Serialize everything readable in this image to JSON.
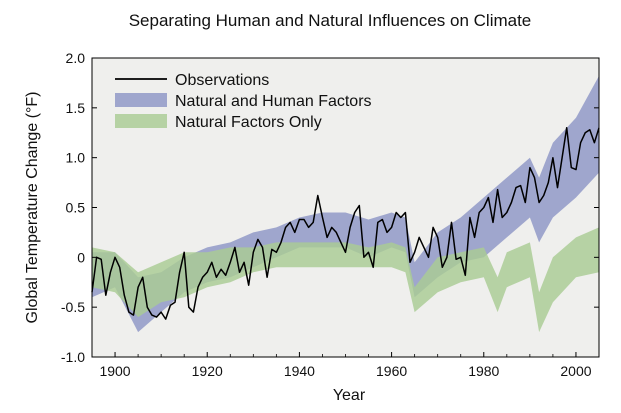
{
  "chart_data": {
    "type": "line",
    "title": "Separating Human and Natural Influences on Climate",
    "xlabel": "Year",
    "ylabel": "Global Temperature Change (°F)",
    "xlim": [
      1895,
      2005
    ],
    "ylim": [
      -1.0,
      2.0
    ],
    "xticks": [
      1900,
      1920,
      1940,
      1960,
      1980,
      2000
    ],
    "yticks": [
      -1.0,
      -0.5,
      0,
      0.5,
      1.0,
      1.5,
      2.0
    ],
    "ytick_labels": [
      "-1.0",
      "-0.5",
      "0",
      "0.5",
      "1.0",
      "1.5",
      "2.0"
    ],
    "grid": false,
    "plot_background": "#efefed",
    "legend_position": "top-left",
    "series": [
      {
        "name": "Observations",
        "kind": "line",
        "color": "#000000",
        "x": [
          1895,
          1896,
          1897,
          1898,
          1899,
          1900,
          1901,
          1902,
          1903,
          1904,
          1905,
          1906,
          1907,
          1908,
          1909,
          1910,
          1911,
          1912,
          1913,
          1914,
          1915,
          1916,
          1917,
          1918,
          1919,
          1920,
          1921,
          1922,
          1923,
          1924,
          1925,
          1926,
          1927,
          1928,
          1929,
          1930,
          1931,
          1932,
          1933,
          1934,
          1935,
          1936,
          1937,
          1938,
          1939,
          1940,
          1941,
          1942,
          1943,
          1944,
          1945,
          1946,
          1947,
          1948,
          1949,
          1950,
          1951,
          1952,
          1953,
          1954,
          1955,
          1956,
          1957,
          1958,
          1959,
          1960,
          1961,
          1962,
          1963,
          1964,
          1965,
          1966,
          1967,
          1968,
          1969,
          1970,
          1971,
          1972,
          1973,
          1974,
          1975,
          1976,
          1977,
          1978,
          1979,
          1980,
          1981,
          1982,
          1983,
          1984,
          1985,
          1986,
          1987,
          1988,
          1989,
          1990,
          1991,
          1992,
          1993,
          1994,
          1995,
          1996,
          1997,
          1998,
          1999,
          2000,
          2001,
          2002,
          2003,
          2004,
          2005
        ],
        "values": [
          -0.35,
          0.0,
          -0.02,
          -0.38,
          -0.15,
          0.0,
          -0.1,
          -0.38,
          -0.55,
          -0.58,
          -0.3,
          -0.2,
          -0.5,
          -0.58,
          -0.6,
          -0.55,
          -0.62,
          -0.48,
          -0.45,
          -0.15,
          0.05,
          -0.5,
          -0.55,
          -0.3,
          -0.2,
          -0.15,
          -0.05,
          -0.2,
          -0.12,
          -0.18,
          -0.05,
          0.1,
          -0.15,
          -0.05,
          -0.28,
          0.05,
          0.18,
          0.1,
          -0.2,
          0.08,
          0.05,
          0.15,
          0.3,
          0.35,
          0.25,
          0.38,
          0.38,
          0.3,
          0.35,
          0.62,
          0.4,
          0.2,
          0.3,
          0.25,
          0.15,
          0.05,
          0.3,
          0.45,
          0.52,
          0.0,
          0.05,
          -0.1,
          0.35,
          0.38,
          0.25,
          0.3,
          0.45,
          0.4,
          0.45,
          -0.05,
          0.05,
          0.2,
          0.1,
          0.0,
          0.3,
          0.2,
          -0.1,
          0.0,
          0.35,
          -0.02,
          0.0,
          -0.18,
          0.4,
          0.2,
          0.45,
          0.5,
          0.6,
          0.35,
          0.68,
          0.4,
          0.45,
          0.55,
          0.7,
          0.72,
          0.55,
          0.9,
          0.8,
          0.55,
          0.62,
          0.75,
          1.0,
          0.7,
          1.0,
          1.3,
          0.9,
          0.88,
          1.15,
          1.25,
          1.28,
          1.15,
          1.3
        ]
      },
      {
        "name": "Natural and Human Factors",
        "kind": "band",
        "color": "#8e96c6",
        "opacity": 0.82,
        "x": [
          1895,
          1900,
          1905,
          1910,
          1915,
          1920,
          1925,
          1930,
          1935,
          1940,
          1945,
          1950,
          1955,
          1960,
          1963,
          1965,
          1970,
          1975,
          1980,
          1985,
          1990,
          1992,
          1995,
          2000,
          2005
        ],
        "lower": [
          -0.4,
          -0.3,
          -0.75,
          -0.55,
          -0.35,
          -0.25,
          -0.2,
          -0.1,
          0.0,
          0.1,
          0.1,
          0.1,
          0.0,
          0.1,
          0.05,
          -0.4,
          -0.2,
          -0.05,
          0.0,
          0.2,
          0.4,
          0.15,
          0.4,
          0.6,
          0.85
        ],
        "upper": [
          0.05,
          0.05,
          -0.2,
          -0.15,
          0.0,
          0.1,
          0.15,
          0.25,
          0.3,
          0.4,
          0.45,
          0.45,
          0.38,
          0.45,
          0.4,
          -0.05,
          0.25,
          0.4,
          0.6,
          0.8,
          1.0,
          0.8,
          1.15,
          1.4,
          1.82
        ]
      },
      {
        "name": "Natural Factors Only",
        "kind": "band",
        "color": "#a9cc94",
        "opacity": 0.82,
        "x": [
          1895,
          1900,
          1905,
          1910,
          1915,
          1920,
          1925,
          1930,
          1935,
          1940,
          1945,
          1950,
          1955,
          1960,
          1963,
          1965,
          1970,
          1975,
          1980,
          1983,
          1985,
          1990,
          1992,
          1995,
          2000,
          2005
        ],
        "lower": [
          -0.3,
          -0.35,
          -0.6,
          -0.45,
          -0.4,
          -0.3,
          -0.25,
          -0.15,
          -0.1,
          -0.1,
          -0.1,
          -0.1,
          -0.1,
          -0.1,
          -0.15,
          -0.55,
          -0.35,
          -0.25,
          -0.2,
          -0.55,
          -0.3,
          -0.2,
          -0.75,
          -0.45,
          -0.2,
          -0.15
        ],
        "upper": [
          0.1,
          0.05,
          -0.15,
          -0.05,
          0.05,
          0.05,
          0.1,
          0.1,
          0.15,
          0.15,
          0.15,
          0.15,
          0.1,
          0.15,
          0.1,
          -0.3,
          0.0,
          0.05,
          0.1,
          -0.2,
          0.05,
          0.15,
          -0.35,
          0.0,
          0.2,
          0.3
        ]
      }
    ]
  }
}
